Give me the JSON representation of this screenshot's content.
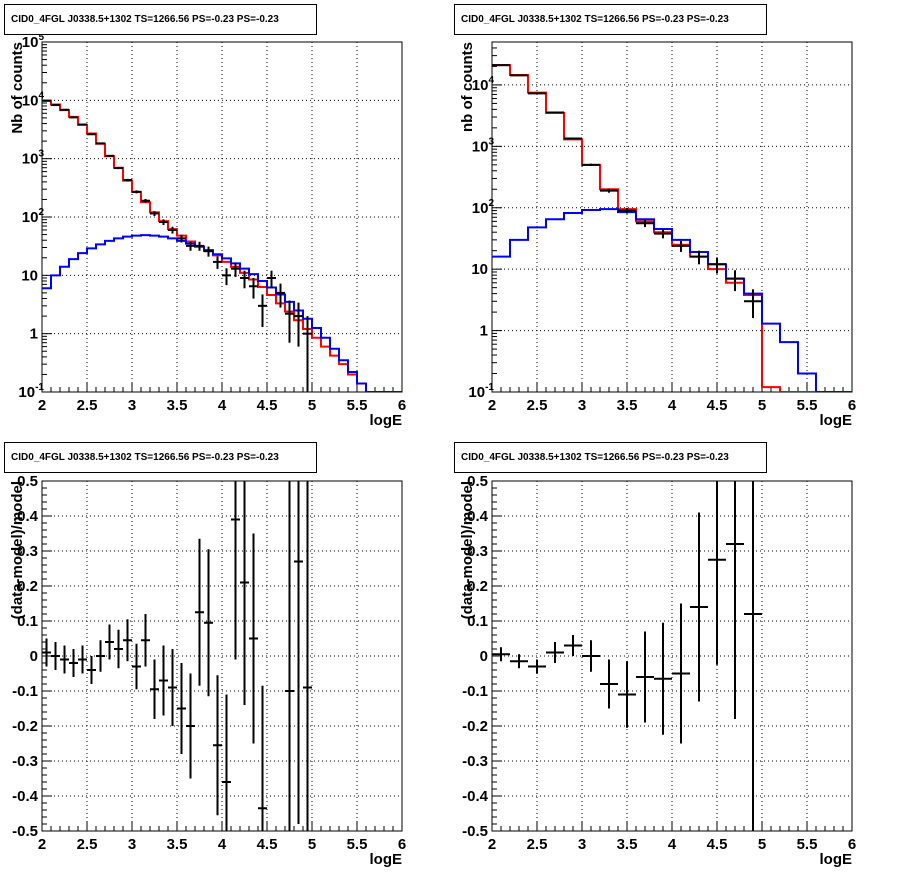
{
  "chart_data": [
    {
      "type": "line",
      "title": "CID0_4FGL J0338.5+1302 TS=1266.56 PS=-0.23 PS=-0.23",
      "xlabel": "logE",
      "ylabel": "Nb of counts",
      "xlim": [
        2,
        6
      ],
      "ylim": [
        0.1,
        100000
      ],
      "yscale": "log",
      "grid": true,
      "x_ticks": [
        "2",
        "2.5",
        "3",
        "3.5",
        "4",
        "4.5",
        "5",
        "5.5",
        "6"
      ],
      "y_ticks": [
        {
          "base": "10",
          "exp": "-1"
        },
        {
          "base": "1",
          "exp": ""
        },
        {
          "base": "10",
          "exp": ""
        },
        {
          "base": "10",
          "exp": "2"
        },
        {
          "base": "10",
          "exp": "3"
        },
        {
          "base": "10",
          "exp": "4"
        },
        {
          "base": "10",
          "exp": "5"
        }
      ],
      "series": [
        {
          "color": "#ff0000",
          "style": "step",
          "bin_width": 0.1,
          "x": [
            2.05,
            2.15,
            2.25,
            2.35,
            2.45,
            2.55,
            2.65,
            2.75,
            2.85,
            2.95,
            3.05,
            3.15,
            3.25,
            3.35,
            3.45,
            3.55,
            3.65,
            3.75,
            3.85,
            3.95,
            4.05,
            4.15,
            4.25,
            4.35,
            4.45,
            4.55,
            4.65,
            4.75,
            4.85,
            4.95,
            5.05,
            5.15,
            5.25,
            5.35,
            5.45,
            5.55,
            5.65,
            5.75,
            5.85,
            5.95
          ],
          "y": [
            9800,
            8500,
            6800,
            5200,
            3800,
            2700,
            1800,
            1100,
            700,
            420,
            270,
            180,
            120,
            85,
            62,
            48,
            38,
            31,
            26,
            22,
            17,
            14,
            11,
            8.5,
            6.3,
            4.6,
            3.3,
            2.4,
            1.7,
            1.2,
            0.85,
            0.6,
            0.42,
            0.3,
            0.2,
            0.14,
            0.1,
            0.1,
            0.1,
            0.1
          ]
        },
        {
          "color": "#0000ff",
          "style": "step",
          "bin_width": 0.1,
          "x": [
            2.05,
            2.15,
            2.25,
            2.35,
            2.45,
            2.55,
            2.65,
            2.75,
            2.85,
            2.95,
            3.05,
            3.15,
            3.25,
            3.35,
            3.45,
            3.55,
            3.65,
            3.75,
            3.85,
            3.95,
            4.05,
            4.15,
            4.25,
            4.35,
            4.45,
            4.55,
            4.65,
            4.75,
            4.85,
            4.95,
            5.05,
            5.15,
            5.25,
            5.35,
            5.45,
            5.55,
            5.65,
            5.75,
            5.85,
            5.95
          ],
          "y": [
            6,
            10,
            14,
            19,
            24,
            29,
            34,
            39,
            43,
            46,
            48,
            49,
            48,
            46,
            43,
            39,
            35,
            31,
            27,
            23,
            19.5,
            16,
            13,
            10.5,
            8,
            6.2,
            4.7,
            3.5,
            2.5,
            1.8,
            1.25,
            0.85,
            0.55,
            0.35,
            0.22,
            0.14,
            0.1,
            0.1,
            0.1,
            0.1
          ]
        },
        {
          "color": "#000000",
          "style": "errorbar",
          "xerr": 0.05,
          "x": [
            2.05,
            2.15,
            2.25,
            2.35,
            2.45,
            2.55,
            2.65,
            2.75,
            2.85,
            2.95,
            3.05,
            3.15,
            3.25,
            3.35,
            3.45,
            3.55,
            3.65,
            3.75,
            3.85,
            3.95,
            4.05,
            4.15,
            4.25,
            4.35,
            4.45,
            4.55,
            4.65,
            4.75,
            4.85,
            4.95
          ],
          "y": [
            9900,
            8300,
            6900,
            5100,
            3850,
            2620,
            1830,
            1120,
            690,
            430,
            270,
            190,
            115,
            82,
            60,
            43,
            32,
            32,
            26,
            17,
            10,
            13,
            9,
            6.5,
            3,
            9,
            5,
            2.2,
            2,
            1
          ],
          "yerr_low": [
            100,
            91,
            83,
            71,
            62,
            51,
            43,
            33,
            26,
            21,
            16,
            14,
            11,
            9,
            8,
            6.5,
            5.6,
            5.6,
            5.1,
            4.1,
            3.2,
            3.6,
            3,
            2.5,
            1.7,
            3,
            2.2,
            1.5,
            1.4,
            0.98
          ],
          "yerr_high": [
            100,
            91,
            83,
            71,
            62,
            51,
            43,
            33,
            26,
            21,
            16,
            14,
            11,
            9,
            8,
            6.5,
            5.6,
            5.6,
            5.1,
            4.1,
            3.2,
            3.6,
            3,
            2.5,
            1.7,
            3,
            2.2,
            1.5,
            1.4,
            1
          ]
        }
      ]
    },
    {
      "type": "line",
      "title": "CID0_4FGL J0338.5+1302 TS=1266.56 PS=-0.23 PS=-0.23",
      "xlabel": "logE",
      "ylabel": "nb of counts",
      "xlim": [
        2,
        6
      ],
      "ylim": [
        0.1,
        50000
      ],
      "yscale": "log",
      "grid": true,
      "x_ticks": [
        "2",
        "2.5",
        "3",
        "3.5",
        "4",
        "4.5",
        "5",
        "5.5",
        "6"
      ],
      "y_ticks": [
        {
          "base": "10",
          "exp": "-1"
        },
        {
          "base": "1",
          "exp": ""
        },
        {
          "base": "10",
          "exp": ""
        },
        {
          "base": "10",
          "exp": "2"
        },
        {
          "base": "10",
          "exp": "3"
        },
        {
          "base": "10",
          "exp": "4"
        }
      ],
      "series": [
        {
          "color": "#ff0000",
          "style": "step",
          "bin_width": 0.2,
          "x": [
            2.1,
            2.3,
            2.5,
            2.7,
            2.9,
            3.1,
            3.3,
            3.5,
            3.7,
            3.9,
            4.1,
            4.3,
            4.5,
            4.7,
            4.9,
            5.1,
            5.3,
            5.5,
            5.7,
            5.9
          ],
          "y": [
            21000,
            14500,
            7500,
            3500,
            1300,
            500,
            200,
            95,
            60,
            40,
            25,
            16,
            10,
            6,
            3.8,
            0.12,
            0.1,
            0.1,
            0.1,
            0.1
          ]
        },
        {
          "color": "#0000ff",
          "style": "step",
          "bin_width": 0.2,
          "x": [
            2.1,
            2.3,
            2.5,
            2.7,
            2.9,
            3.1,
            3.3,
            3.5,
            3.7,
            3.9,
            4.1,
            4.3,
            4.5,
            4.7,
            4.9,
            5.1,
            5.3,
            5.5,
            5.7,
            5.9
          ],
          "y": [
            16,
            30,
            48,
            65,
            82,
            92,
            95,
            85,
            65,
            45,
            30,
            19,
            12,
            7,
            4,
            1.3,
            0.65,
            0.2,
            0.1,
            0.1
          ]
        },
        {
          "color": "#000000",
          "style": "errorbar",
          "xerr": 0.1,
          "x": [
            2.1,
            2.3,
            2.5,
            2.7,
            2.9,
            3.1,
            3.3,
            3.5,
            3.7,
            3.9,
            4.1,
            4.3,
            4.5,
            4.7,
            4.9
          ],
          "y": [
            21000,
            14300,
            7300,
            3550,
            1340,
            500,
            190,
            90,
            56,
            38,
            24,
            16,
            12,
            7,
            3
          ],
          "yerr_low": [
            145,
            120,
            85,
            60,
            37,
            22,
            14,
            9.5,
            7.5,
            6.2,
            4.9,
            4,
            3.5,
            2.6,
            1.4
          ],
          "yerr_high": [
            145,
            120,
            85,
            60,
            37,
            22,
            14,
            9.5,
            7.5,
            6.2,
            4.9,
            4,
            3.5,
            2.6,
            1.7
          ]
        }
      ]
    },
    {
      "type": "scatter",
      "title": "CID0_4FGL J0338.5+1302 TS=1266.56 PS=-0.23 PS=-0.23",
      "xlabel": "logE",
      "ylabel": "(data-model)/model",
      "xlim": [
        2,
        6
      ],
      "ylim": [
        -0.5,
        0.5
      ],
      "grid": true,
      "x_ticks": [
        "2",
        "2.5",
        "3",
        "3.5",
        "4",
        "4.5",
        "5",
        "5.5",
        "6"
      ],
      "y_ticks": [
        "-0.5",
        "-0.4",
        "-0.3",
        "-0.2",
        "-0.1",
        "0",
        "0.1",
        "0.2",
        "0.3",
        "0.4",
        "0.5"
      ],
      "series": [
        {
          "color": "#000000",
          "style": "errorbar",
          "xerr": 0.05,
          "x": [
            2.05,
            2.15,
            2.25,
            2.35,
            2.45,
            2.55,
            2.65,
            2.75,
            2.85,
            2.95,
            3.05,
            3.15,
            3.25,
            3.35,
            3.45,
            3.55,
            3.65,
            3.75,
            3.85,
            3.95,
            4.05,
            4.15,
            4.25,
            4.35,
            4.45,
            4.75,
            4.85,
            4.95
          ],
          "y": [
            0.01,
            0,
            -0.01,
            -0.02,
            -0.01,
            -0.04,
            0,
            0.04,
            0.02,
            0.045,
            -0.03,
            0.045,
            -0.095,
            -0.07,
            -0.09,
            -0.15,
            -0.2,
            0.125,
            0.095,
            -0.255,
            -0.36,
            0.39,
            0.21,
            0.05,
            -0.435,
            -0.1,
            0.27,
            -0.09
          ],
          "yerr": [
            0.04,
            0.04,
            0.04,
            0.04,
            0.04,
            0.04,
            0.045,
            0.05,
            0.055,
            0.06,
            0.065,
            0.075,
            0.085,
            0.1,
            0.11,
            0.13,
            0.15,
            0.21,
            0.21,
            0.2,
            0.25,
            0.4,
            0.35,
            0.3,
            0.35,
            0.6,
            0.75,
            0.9
          ]
        }
      ]
    },
    {
      "type": "scatter",
      "title": "CID0_4FGL J0338.5+1302 TS=1266.56 PS=-0.23 PS=-0.23",
      "xlabel": "logE",
      "ylabel": "(data-model)/model",
      "xlim": [
        2,
        6
      ],
      "ylim": [
        -0.5,
        0.5
      ],
      "grid": true,
      "x_ticks": [
        "2",
        "2.5",
        "3",
        "3.5",
        "4",
        "4.5",
        "5",
        "5.5",
        "6"
      ],
      "y_ticks": [
        "-0.5",
        "-0.4",
        "-0.3",
        "-0.2",
        "-0.1",
        "0",
        "0.1",
        "0.2",
        "0.3",
        "0.4",
        "0.5"
      ],
      "series": [
        {
          "color": "#000000",
          "style": "errorbar",
          "xerr": 0.1,
          "x": [
            2.1,
            2.3,
            2.5,
            2.7,
            2.9,
            3.1,
            3.3,
            3.5,
            3.7,
            3.9,
            4.1,
            4.3,
            4.5,
            4.7,
            4.9
          ],
          "y": [
            0.005,
            -0.015,
            -0.03,
            0.01,
            0.03,
            0,
            -0.08,
            -0.11,
            -0.06,
            -0.065,
            -0.05,
            0.14,
            0.275,
            0.32,
            0.12
          ],
          "yerr": [
            0.02,
            0.02,
            0.02,
            0.03,
            0.03,
            0.045,
            0.07,
            0.095,
            0.13,
            0.16,
            0.2,
            0.27,
            0.3,
            0.5,
            0.9
          ]
        }
      ]
    }
  ]
}
